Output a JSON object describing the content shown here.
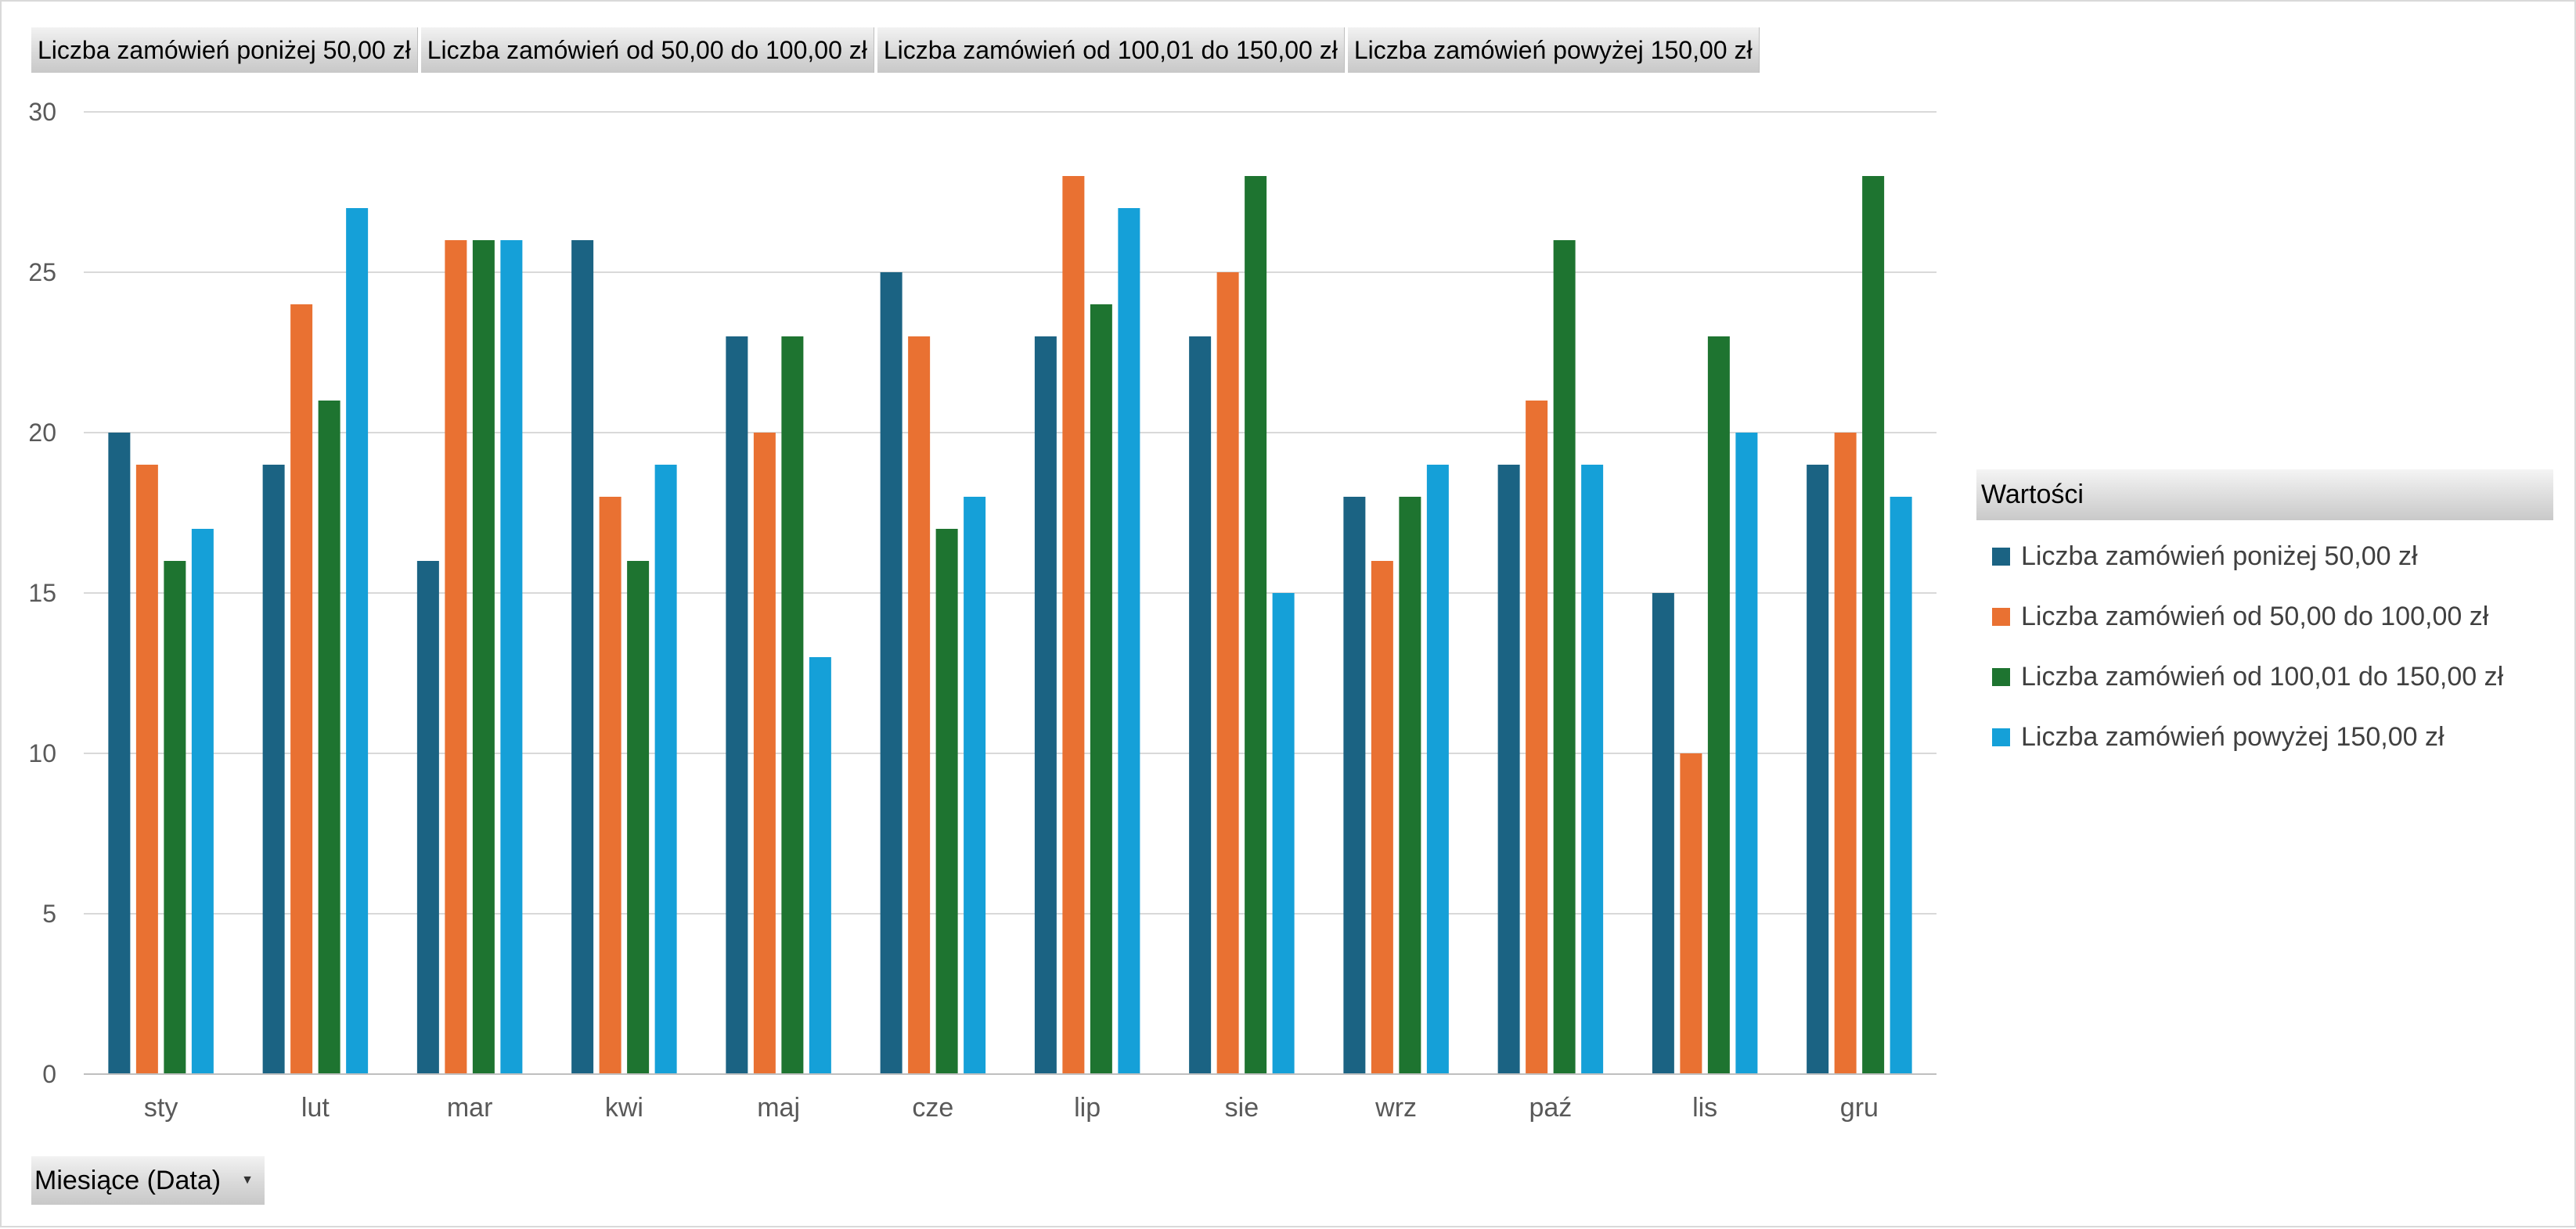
{
  "field_buttons": [
    "Liczba zamówień poniżej 50,00 zł",
    "Liczba zamówień od 50,00 do 100,00 zł",
    "Liczba zamówień od 100,01 do 150,00 zł",
    "Liczba zamówień powyżej 150,00 zł"
  ],
  "axis_field_button": {
    "label": "Miesiące (Data)",
    "icon": "dropdown-arrow-icon"
  },
  "legend": {
    "title": "Wartości"
  },
  "colors": {
    "gridline": "#d9d9d9",
    "axis_line": "#bfbfbf",
    "tick_text": "#595959"
  },
  "chart_data": {
    "type": "bar",
    "categories": [
      "sty",
      "lut",
      "mar",
      "kwi",
      "maj",
      "cze",
      "lip",
      "sie",
      "wrz",
      "paź",
      "lis",
      "gru"
    ],
    "ylim": [
      0,
      30
    ],
    "yticks": [
      0,
      5,
      10,
      15,
      20,
      25,
      30
    ],
    "grid": true,
    "legend_position": "right",
    "series": [
      {
        "name": "Liczba zamówień poniżej 50,00 zł",
        "color": "#1b6383",
        "values": [
          20,
          19,
          16,
          26,
          23,
          25,
          23,
          23,
          18,
          19,
          15,
          19
        ]
      },
      {
        "name": "Liczba zamówień od 50,00 do 100,00 zł",
        "color": "#e97132",
        "values": [
          19,
          24,
          26,
          18,
          20,
          23,
          28,
          25,
          16,
          21,
          10,
          20
        ]
      },
      {
        "name": "Liczba zamówień od 100,01 do 150,00 zł",
        "color": "#1e7430",
        "values": [
          16,
          21,
          26,
          16,
          23,
          17,
          24,
          28,
          18,
          26,
          23,
          28
        ]
      },
      {
        "name": "Liczba zamówień powyżej 150,00 zł",
        "color": "#15a0d8",
        "values": [
          17,
          27,
          26,
          19,
          13,
          18,
          27,
          15,
          19,
          19,
          20,
          18
        ]
      }
    ]
  }
}
